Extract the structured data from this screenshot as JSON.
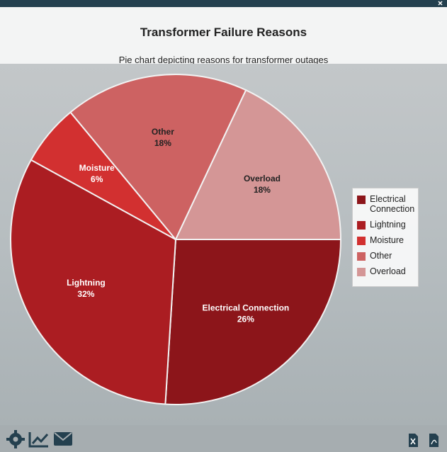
{
  "chart_data": {
    "type": "pie",
    "title": "Transformer Failure Reasons",
    "subtitle": "Pie chart depicting reasons for transformer outages",
    "categories": [
      "Electrical Connection",
      "Lightning",
      "Moisture",
      "Other",
      "Overload"
    ],
    "values": [
      26,
      32,
      6,
      18,
      18
    ],
    "value_labels": [
      "26%",
      "32%",
      "6%",
      "18%",
      "18%"
    ],
    "colors": [
      "#8c151a",
      "#ab1d22",
      "#d23030",
      "#cd6262",
      "#d49696"
    ],
    "legend": "right"
  }
}
